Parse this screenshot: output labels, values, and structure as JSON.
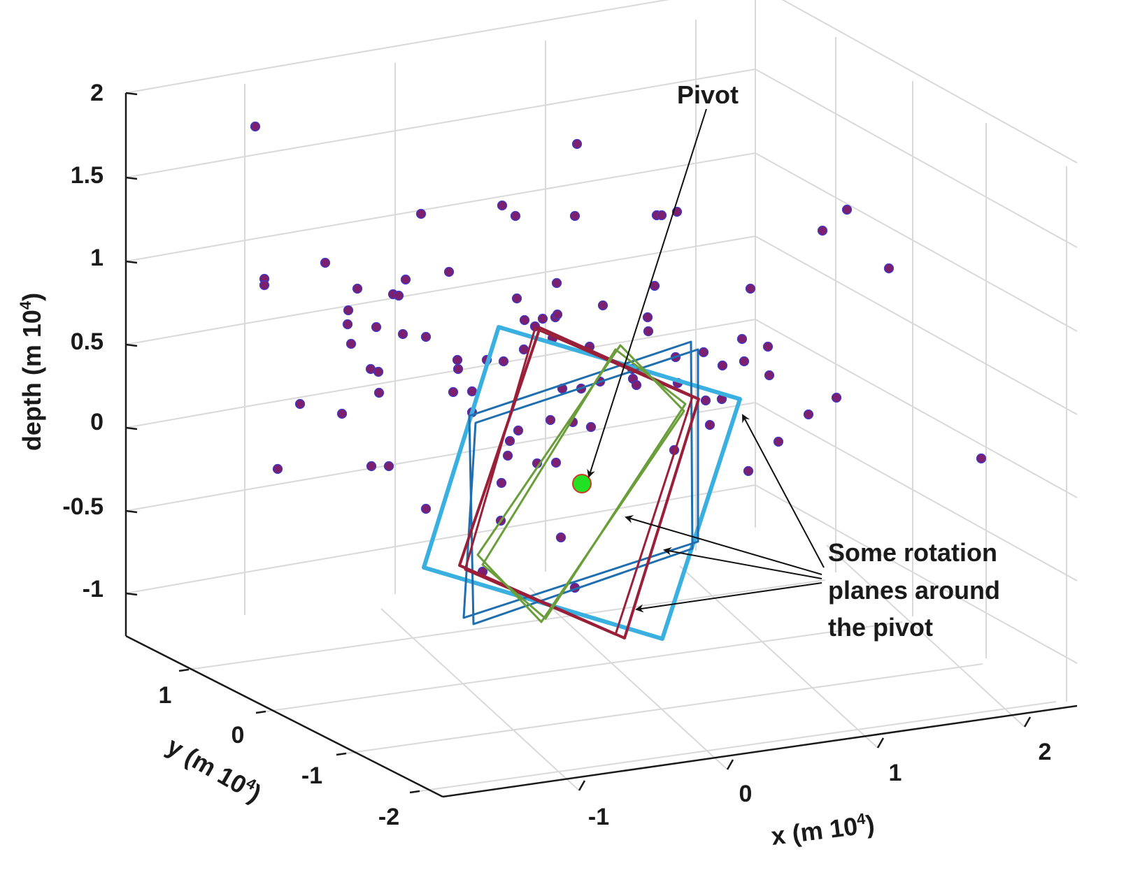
{
  "chart_data": {
    "type": "scatter3d",
    "title": "",
    "axes": {
      "x": {
        "label": "x (m 10",
        "label_sup": "4",
        "label_end": ")",
        "ticks": [
          "-1",
          "0",
          "1",
          "2"
        ],
        "range": [
          -2,
          2.6
        ]
      },
      "y": {
        "label": "y (m  10",
        "label_sup": "4",
        "label_end": ")",
        "ticks": [
          "1",
          "0",
          "-1",
          "-2"
        ],
        "range": [
          -2.6,
          1.6
        ]
      },
      "z": {
        "label": "depth (m 10",
        "label_sup": "4",
        "label_end": ")",
        "ticks": [
          "2",
          "1.5",
          "1",
          "0.5",
          "0",
          "-0.5",
          "-1"
        ],
        "range": [
          -1.3,
          2
        ]
      }
    },
    "grid": true,
    "points": {
      "color": "#7b1f6e",
      "edge": "#3b3bd0",
      "xy": [
        [
          365,
          181
        ],
        [
          825,
          206
        ],
        [
          718,
          294
        ],
        [
          737,
          309
        ],
        [
          822,
          309
        ],
        [
          602,
          306
        ],
        [
          939,
          308
        ],
        [
          946,
          308
        ],
        [
          968,
          303
        ],
        [
          1211,
          300
        ],
        [
          1176,
          330
        ],
        [
          1271,
          384
        ],
        [
          465,
          376
        ],
        [
          642,
          389
        ],
        [
          378,
          399
        ],
        [
          378,
          408
        ],
        [
          511,
          413
        ],
        [
          580,
          400
        ],
        [
          562,
          421
        ],
        [
          570,
          423
        ],
        [
          739,
          427
        ],
        [
          796,
          405
        ],
        [
          936,
          409
        ],
        [
          1073,
          413
        ],
        [
          498,
          444
        ],
        [
          497,
          464
        ],
        [
          538,
          468
        ],
        [
          502,
          492
        ],
        [
          576,
          478
        ],
        [
          609,
          482
        ],
        [
          750,
          458
        ],
        [
          776,
          456
        ],
        [
          794,
          454
        ],
        [
          797,
          450
        ],
        [
          862,
          437
        ],
        [
          926,
          454
        ],
        [
          927,
          474
        ],
        [
          765,
          467
        ],
        [
          790,
          484
        ],
        [
          843,
          496
        ],
        [
          1061,
          485
        ],
        [
          1098,
          496
        ],
        [
          1064,
          517
        ],
        [
          1006,
          504
        ],
        [
          1033,
          523
        ],
        [
          1100,
          537
        ],
        [
          966,
          511
        ],
        [
          530,
          528
        ],
        [
          541,
          532
        ],
        [
          542,
          562
        ],
        [
          429,
          578
        ],
        [
          489,
          592
        ],
        [
          654,
          515
        ],
        [
          655,
          528
        ],
        [
          696,
          515
        ],
        [
          720,
          517
        ],
        [
          749,
          500
        ],
        [
          648,
          561
        ],
        [
          675,
          560
        ],
        [
          675,
          590
        ],
        [
          804,
          556
        ],
        [
          831,
          556
        ],
        [
          858,
          546
        ],
        [
          904,
          528
        ],
        [
          905,
          542
        ],
        [
          910,
          551
        ],
        [
          969,
          548
        ],
        [
          1009,
          573
        ],
        [
          1032,
          571
        ],
        [
          1196,
          569
        ],
        [
          1156,
          593
        ],
        [
          1015,
          608
        ],
        [
          1113,
          632
        ],
        [
          1070,
          674
        ],
        [
          1403,
          656
        ],
        [
          787,
          601
        ],
        [
          819,
          604
        ],
        [
          845,
          611
        ],
        [
          741,
          616
        ],
        [
          729,
          631
        ],
        [
          726,
          652
        ],
        [
          768,
          663
        ],
        [
          795,
          662
        ],
        [
          717,
          691
        ],
        [
          964,
          644
        ],
        [
          397,
          671
        ],
        [
          531,
          667
        ],
        [
          556,
          667
        ],
        [
          609,
          728
        ],
        [
          716,
          745
        ],
        [
          802,
          769
        ],
        [
          822,
          841
        ],
        [
          690,
          818
        ]
      ]
    },
    "pivot": {
      "label": "Pivot",
      "color": "#22e022",
      "edge": "#d23b2a",
      "xy": [
        832,
        692
      ]
    },
    "planes": [
      {
        "name": "",
        "color": "#3ab0e0",
        "width": 6,
        "outline": [
          [
            713,
            468
          ],
          [
            1058,
            571
          ],
          [
            947,
            914
          ],
          [
            606,
            812
          ]
        ]
      },
      {
        "name": "",
        "color": "#1f6fb0",
        "width": 3,
        "outline": [
          [
            671,
            595
          ],
          [
            988,
            489
          ],
          [
            990,
            785
          ],
          [
            677,
            893
          ]
        ]
      },
      {
        "name": "",
        "color": "#1f6fb0",
        "width": 3,
        "outline": [
          [
            680,
            605
          ],
          [
            998,
            500
          ],
          [
            998,
            775
          ],
          [
            663,
            884
          ]
        ]
      },
      {
        "name": "",
        "color": "#9a1f38",
        "width": 4,
        "outline": [
          [
            772,
            469
          ],
          [
            999,
            571
          ],
          [
            893,
            913
          ],
          [
            657,
            809
          ]
        ]
      },
      {
        "name": "",
        "color": "#9a1f38",
        "width": 3,
        "outline": [
          [
            765,
            470
          ],
          [
            990,
            568
          ],
          [
            880,
            908
          ],
          [
            665,
            815
          ]
        ]
      },
      {
        "name": "",
        "color": "#6a9e3a",
        "width": 3,
        "outline": [
          [
            887,
            494
          ],
          [
            978,
            588
          ],
          [
            774,
            890
          ],
          [
            683,
            794
          ]
        ]
      },
      {
        "name": "",
        "color": "#6a9e3a",
        "width": 3,
        "outline": [
          [
            880,
            500
          ],
          [
            980,
            578
          ],
          [
            780,
            885
          ],
          [
            690,
            808
          ]
        ]
      }
    ],
    "annotations": {
      "rotation_text": [
        "Some rotation",
        "planes around",
        "the pivot"
      ]
    }
  }
}
